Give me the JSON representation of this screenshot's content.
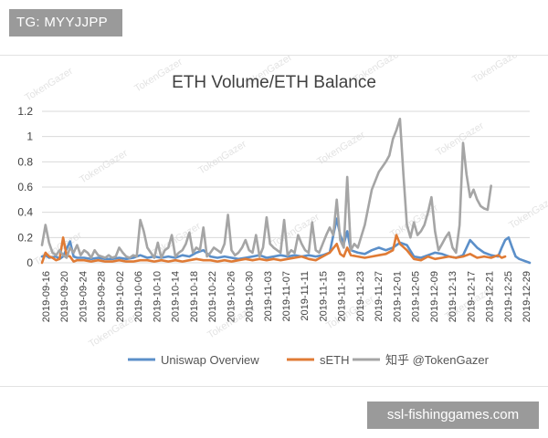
{
  "tg_label": "TG: MYYJJPP",
  "site_label": "ssl-fishinggames.com",
  "legend_credit": "知乎 @TokenGazer",
  "watermark_text": "TokenGazer",
  "colors": {
    "uniswap": "#5b8fc9",
    "seth": "#e07b35",
    "other": "#a5a5a5",
    "grid": "#d9d9d9",
    "text": "#404040"
  },
  "chart_data": {
    "type": "line",
    "title": "ETH Volume/ETH Balance",
    "xlabel": "",
    "ylabel": "",
    "ylim": [
      0,
      1.2
    ],
    "yticks": [
      0,
      0.2,
      0.4,
      0.6,
      0.8,
      1,
      1.2
    ],
    "xtick_labels": [
      "2019-09-16",
      "2019-09-20",
      "2019-09-24",
      "2019-09-28",
      "2019-10-02",
      "2019-10-06",
      "2019-10-10",
      "2019-10-14",
      "2019-10-18",
      "2019-10-22",
      "2019-10-26",
      "2019-10-30",
      "2019-11-03",
      "2019-11-07",
      "2019-11-11",
      "2019-11-15",
      "2019-11-19",
      "2019-11-23",
      "2019-11-27",
      "2019-12-01",
      "2019-12-05",
      "2019-12-09",
      "2019-12-13",
      "2019-12-17",
      "2019-12-21",
      "2019-12-25",
      "2019-12-29"
    ],
    "grid": true,
    "legend_position": "bottom",
    "series": [
      {
        "name": "Uniswap Overview",
        "color": "#5b8fc9",
        "points": [
          [
            0,
            0.05
          ],
          [
            1,
            0.06
          ],
          [
            2,
            0.04
          ],
          [
            4,
            0.05
          ],
          [
            5,
            0.03
          ],
          [
            6,
            0.05
          ],
          [
            8,
            0.17
          ],
          [
            9,
            0.05
          ],
          [
            10,
            0.04
          ],
          [
            12,
            0.04
          ],
          [
            14,
            0.03
          ],
          [
            16,
            0.04
          ],
          [
            18,
            0.03
          ],
          [
            20,
            0.03
          ],
          [
            22,
            0.04
          ],
          [
            24,
            0.03
          ],
          [
            26,
            0.04
          ],
          [
            28,
            0.06
          ],
          [
            30,
            0.04
          ],
          [
            32,
            0.05
          ],
          [
            34,
            0.04
          ],
          [
            36,
            0.05
          ],
          [
            38,
            0.04
          ],
          [
            40,
            0.06
          ],
          [
            42,
            0.05
          ],
          [
            44,
            0.08
          ],
          [
            46,
            0.1
          ],
          [
            48,
            0.05
          ],
          [
            50,
            0.04
          ],
          [
            52,
            0.05
          ],
          [
            54,
            0.04
          ],
          [
            56,
            0.03
          ],
          [
            58,
            0.04
          ],
          [
            60,
            0.05
          ],
          [
            62,
            0.06
          ],
          [
            64,
            0.04
          ],
          [
            66,
            0.05
          ],
          [
            68,
            0.06
          ],
          [
            70,
            0.05
          ],
          [
            72,
            0.06
          ],
          [
            74,
            0.05
          ],
          [
            76,
            0.06
          ],
          [
            78,
            0.05
          ],
          [
            80,
            0.06
          ],
          [
            82,
            0.08
          ],
          [
            84,
            0.35
          ],
          [
            85,
            0.22
          ],
          [
            86,
            0.15
          ],
          [
            87,
            0.25
          ],
          [
            88,
            0.1
          ],
          [
            90,
            0.08
          ],
          [
            92,
            0.07
          ],
          [
            94,
            0.1
          ],
          [
            96,
            0.12
          ],
          [
            98,
            0.1
          ],
          [
            100,
            0.12
          ],
          [
            102,
            0.16
          ],
          [
            104,
            0.14
          ],
          [
            106,
            0.05
          ],
          [
            108,
            0.04
          ],
          [
            110,
            0.06
          ],
          [
            112,
            0.08
          ],
          [
            114,
            0.07
          ],
          [
            116,
            0.05
          ],
          [
            118,
            0.04
          ],
          [
            120,
            0.06
          ],
          [
            122,
            0.18
          ],
          [
            124,
            0.12
          ],
          [
            126,
            0.08
          ],
          [
            128,
            0.06
          ],
          [
            130,
            0.05
          ],
          [
            131,
            0.12
          ],
          [
            132,
            0.18
          ],
          [
            133,
            0.2
          ],
          [
            134,
            0.12
          ],
          [
            135,
            0.05
          ],
          [
            136,
            0.03
          ],
          [
            137,
            0.02
          ],
          [
            138,
            0.01
          ],
          [
            139,
            0.0
          ]
        ]
      },
      {
        "name": "sETH",
        "color": "#e07b35",
        "points": [
          [
            0,
            0.0
          ],
          [
            1,
            0.08
          ],
          [
            2,
            0.05
          ],
          [
            3,
            0.04
          ],
          [
            4,
            0.02
          ],
          [
            5,
            0.03
          ],
          [
            6,
            0.2
          ],
          [
            7,
            0.06
          ],
          [
            8,
            0.05
          ],
          [
            9,
            0.01
          ],
          [
            10,
            0.02
          ],
          [
            12,
            0.02
          ],
          [
            14,
            0.01
          ],
          [
            16,
            0.02
          ],
          [
            18,
            0.01
          ],
          [
            20,
            0.01
          ],
          [
            22,
            0.02
          ],
          [
            24,
            0.01
          ],
          [
            26,
            0.01
          ],
          [
            28,
            0.02
          ],
          [
            30,
            0.02
          ],
          [
            32,
            0.01
          ],
          [
            34,
            0.02
          ],
          [
            36,
            0.01
          ],
          [
            38,
            0.02
          ],
          [
            40,
            0.01
          ],
          [
            42,
            0.02
          ],
          [
            44,
            0.03
          ],
          [
            46,
            0.02
          ],
          [
            48,
            0.02
          ],
          [
            50,
            0.01
          ],
          [
            52,
            0.02
          ],
          [
            54,
            0.01
          ],
          [
            56,
            0.02
          ],
          [
            58,
            0.03
          ],
          [
            60,
            0.02
          ],
          [
            62,
            0.03
          ],
          [
            64,
            0.02
          ],
          [
            66,
            0.03
          ],
          [
            68,
            0.02
          ],
          [
            70,
            0.03
          ],
          [
            72,
            0.04
          ],
          [
            74,
            0.05
          ],
          [
            76,
            0.03
          ],
          [
            78,
            0.02
          ],
          [
            80,
            0.05
          ],
          [
            82,
            0.08
          ],
          [
            84,
            0.15
          ],
          [
            85,
            0.07
          ],
          [
            86,
            0.05
          ],
          [
            87,
            0.12
          ],
          [
            88,
            0.06
          ],
          [
            90,
            0.05
          ],
          [
            92,
            0.04
          ],
          [
            94,
            0.05
          ],
          [
            96,
            0.06
          ],
          [
            98,
            0.07
          ],
          [
            100,
            0.1
          ],
          [
            101,
            0.22
          ],
          [
            102,
            0.15
          ],
          [
            104,
            0.1
          ],
          [
            106,
            0.03
          ],
          [
            108,
            0.02
          ],
          [
            110,
            0.05
          ],
          [
            112,
            0.03
          ],
          [
            114,
            0.04
          ],
          [
            116,
            0.05
          ],
          [
            118,
            0.04
          ],
          [
            120,
            0.05
          ],
          [
            122,
            0.07
          ],
          [
            124,
            0.04
          ],
          [
            126,
            0.05
          ],
          [
            128,
            0.04
          ],
          [
            130,
            0.06
          ],
          [
            131,
            0.04
          ],
          [
            132,
            0.05
          ]
        ]
      },
      {
        "name": "",
        "color": "#a5a5a5",
        "points": [
          [
            0,
            0.14
          ],
          [
            1,
            0.3
          ],
          [
            2,
            0.16
          ],
          [
            3,
            0.08
          ],
          [
            4,
            0.06
          ],
          [
            5,
            0.1
          ],
          [
            6,
            0.06
          ],
          [
            7,
            0.04
          ],
          [
            8,
            0.12
          ],
          [
            9,
            0.08
          ],
          [
            10,
            0.14
          ],
          [
            11,
            0.06
          ],
          [
            12,
            0.1
          ],
          [
            13,
            0.08
          ],
          [
            14,
            0.04
          ],
          [
            15,
            0.1
          ],
          [
            16,
            0.06
          ],
          [
            17,
            0.05
          ],
          [
            18,
            0.04
          ],
          [
            19,
            0.06
          ],
          [
            20,
            0.04
          ],
          [
            21,
            0.05
          ],
          [
            22,
            0.12
          ],
          [
            23,
            0.08
          ],
          [
            24,
            0.05
          ],
          [
            25,
            0.04
          ],
          [
            26,
            0.06
          ],
          [
            27,
            0.05
          ],
          [
            28,
            0.34
          ],
          [
            29,
            0.25
          ],
          [
            30,
            0.12
          ],
          [
            31,
            0.08
          ],
          [
            32,
            0.04
          ],
          [
            33,
            0.16
          ],
          [
            34,
            0.04
          ],
          [
            35,
            0.1
          ],
          [
            36,
            0.12
          ],
          [
            37,
            0.22
          ],
          [
            38,
            0.05
          ],
          [
            39,
            0.08
          ],
          [
            40,
            0.1
          ],
          [
            41,
            0.15
          ],
          [
            42,
            0.24
          ],
          [
            43,
            0.08
          ],
          [
            44,
            0.12
          ],
          [
            45,
            0.1
          ],
          [
            46,
            0.28
          ],
          [
            47,
            0.05
          ],
          [
            48,
            0.08
          ],
          [
            49,
            0.12
          ],
          [
            50,
            0.1
          ],
          [
            51,
            0.08
          ],
          [
            52,
            0.15
          ],
          [
            53,
            0.38
          ],
          [
            54,
            0.1
          ],
          [
            55,
            0.06
          ],
          [
            56,
            0.08
          ],
          [
            57,
            0.12
          ],
          [
            58,
            0.18
          ],
          [
            59,
            0.1
          ],
          [
            60,
            0.08
          ],
          [
            61,
            0.22
          ],
          [
            62,
            0.05
          ],
          [
            63,
            0.12
          ],
          [
            64,
            0.36
          ],
          [
            65,
            0.15
          ],
          [
            66,
            0.12
          ],
          [
            67,
            0.1
          ],
          [
            68,
            0.08
          ],
          [
            69,
            0.34
          ],
          [
            70,
            0.06
          ],
          [
            71,
            0.1
          ],
          [
            72,
            0.08
          ],
          [
            73,
            0.22
          ],
          [
            74,
            0.15
          ],
          [
            75,
            0.1
          ],
          [
            76,
            0.08
          ],
          [
            77,
            0.32
          ],
          [
            78,
            0.1
          ],
          [
            79,
            0.08
          ],
          [
            80,
            0.15
          ],
          [
            81,
            0.22
          ],
          [
            82,
            0.28
          ],
          [
            83,
            0.22
          ],
          [
            84,
            0.5
          ],
          [
            85,
            0.18
          ],
          [
            86,
            0.12
          ],
          [
            87,
            0.68
          ],
          [
            88,
            0.1
          ],
          [
            89,
            0.15
          ],
          [
            90,
            0.12
          ],
          [
            92,
            0.3
          ],
          [
            94,
            0.58
          ],
          [
            96,
            0.72
          ],
          [
            98,
            0.8
          ],
          [
            99,
            0.85
          ],
          [
            100,
            0.98
          ],
          [
            101,
            1.05
          ],
          [
            102,
            1.14
          ],
          [
            103,
            0.7
          ],
          [
            104,
            0.3
          ],
          [
            105,
            0.2
          ],
          [
            106,
            0.32
          ],
          [
            107,
            0.22
          ],
          [
            108,
            0.25
          ],
          [
            109,
            0.3
          ],
          [
            110,
            0.4
          ],
          [
            111,
            0.52
          ],
          [
            112,
            0.25
          ],
          [
            113,
            0.1
          ],
          [
            114,
            0.15
          ],
          [
            115,
            0.2
          ],
          [
            116,
            0.24
          ],
          [
            117,
            0.12
          ],
          [
            118,
            0.08
          ],
          [
            119,
            0.3
          ],
          [
            120,
            0.95
          ],
          [
            121,
            0.7
          ],
          [
            122,
            0.52
          ],
          [
            123,
            0.58
          ],
          [
            124,
            0.5
          ],
          [
            125,
            0.45
          ],
          [
            126,
            0.43
          ],
          [
            127,
            0.42
          ],
          [
            128,
            0.61
          ]
        ]
      }
    ]
  }
}
